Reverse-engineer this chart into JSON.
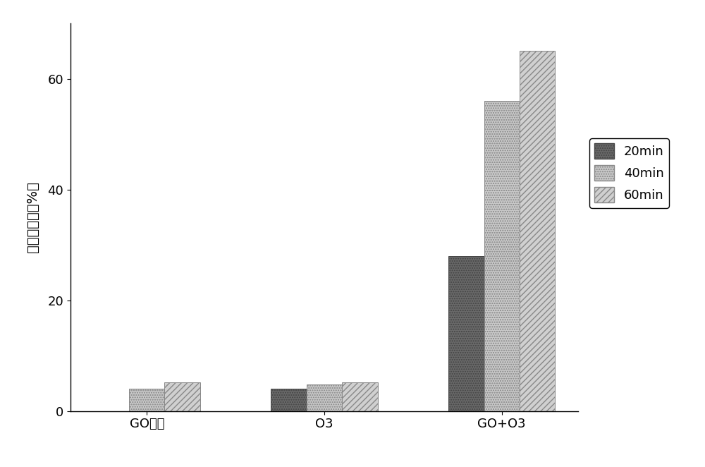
{
  "categories": [
    "GO吸附",
    "O3",
    "GO+O3"
  ],
  "series": {
    "20min": [
      0.0,
      4.0,
      28.0
    ],
    "40min": [
      4.0,
      4.8,
      56.0
    ],
    "60min": [
      5.2,
      5.2,
      65.0
    ]
  },
  "legend_labels": [
    "20min",
    "40min",
    "60min"
  ],
  "ylabel": "草酸去除率（%）",
  "ylim": [
    0,
    70
  ],
  "yticks": [
    0,
    20,
    40,
    60
  ],
  "bar_width": 0.2,
  "background_color": "#ffffff",
  "title_fontsize": 14,
  "tick_fontsize": 13,
  "ylabel_fontsize": 14
}
